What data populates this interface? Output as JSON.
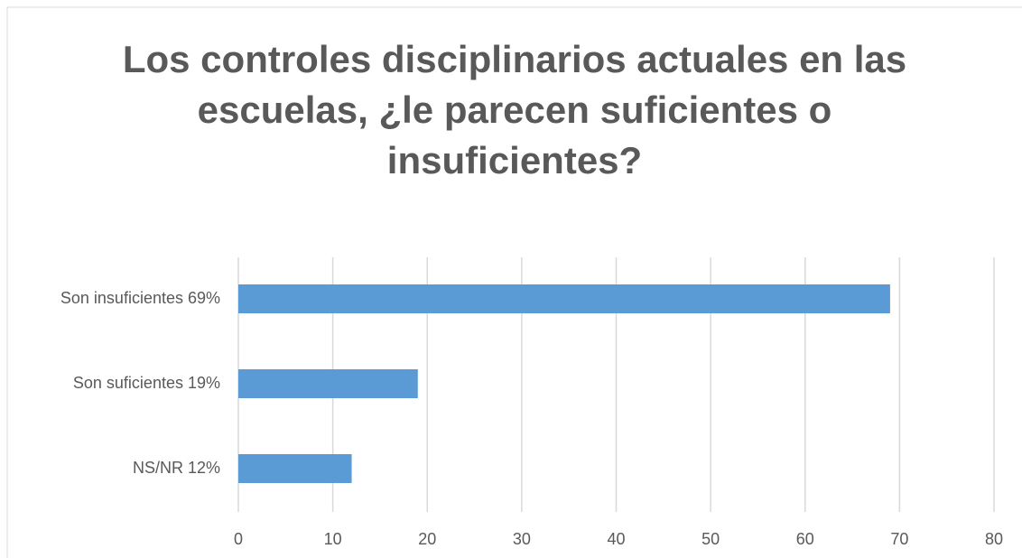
{
  "chart_data": {
    "type": "bar",
    "orientation": "horizontal",
    "title": "Los controles disciplinarios actuales en las escuelas, ¿le parecen suficientes o insuficientes?",
    "categories": [
      "Son insuficientes  69%",
      "Son suficientes  19%",
      "NS/NR  12%"
    ],
    "values": [
      69,
      19,
      12
    ],
    "color": "#5b9bd5",
    "xlim": [
      0,
      80
    ],
    "xticks": [
      0,
      10,
      20,
      30,
      40,
      50,
      60,
      70,
      80
    ],
    "grid": true
  }
}
